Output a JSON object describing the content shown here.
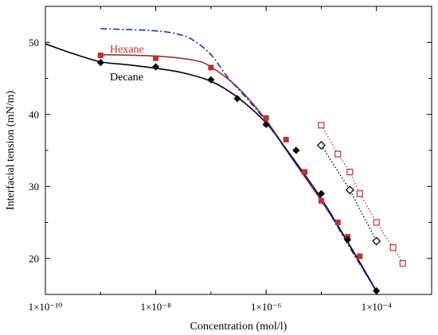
{
  "chart_data": {
    "type": "scatter",
    "title": "",
    "xlabel": "Concentration (mol/l)",
    "ylabel": "Interfacial tension (mN/m)",
    "x_scale": "log",
    "xlim": [
      1e-10,
      0.001
    ],
    "ylim": [
      15,
      55
    ],
    "x_ticks": [
      1e-10,
      1e-08,
      1e-06,
      0.0001
    ],
    "x_tick_labels": [
      "1×10⁻¹⁰",
      "1×10⁻⁸",
      "1×10⁻⁶",
      "1×10⁻⁴"
    ],
    "y_ticks": [
      20,
      30,
      40,
      50
    ],
    "y_tick_labels": [
      "20",
      "30",
      "40",
      "50"
    ],
    "grid": false,
    "annotations": [
      {
        "text": "Hexane",
        "color": "#c0302b"
      },
      {
        "text": "Decane",
        "color": "#000000"
      }
    ],
    "series": [
      {
        "name": "Hexane",
        "kind": "markers",
        "marker": "filled-square",
        "color": "#c0302b",
        "x": [
          1e-09,
          1e-08,
          1e-07,
          1e-06,
          2.3e-06,
          5e-06,
          1e-05,
          2e-05,
          3e-05,
          5e-05
        ],
        "y": [
          48.2,
          47.8,
          46.5,
          39.5,
          36.5,
          32.0,
          28.0,
          25.0,
          23.0,
          20.3
        ]
      },
      {
        "kind": "line",
        "style": "solid",
        "color": "#a0302b",
        "x": [
          1e-09,
          1e-08,
          5e-08,
          1e-07,
          3e-07,
          1e-06,
          3e-06,
          1e-05,
          3e-05,
          0.0001
        ],
        "y": [
          48.3,
          48.1,
          47.5,
          46.6,
          43.8,
          39.2,
          33.8,
          28.0,
          22.3,
          15.5
        ]
      },
      {
        "name": "Decane",
        "kind": "markers",
        "marker": "filled-diamond",
        "color": "#000000",
        "x": [
          1e-09,
          1e-08,
          1e-07,
          3e-07,
          1e-06,
          3.5e-06,
          1e-05,
          3e-05,
          0.0001
        ],
        "y": [
          47.2,
          46.6,
          44.8,
          42.2,
          38.6,
          35.0,
          29.0,
          22.6,
          15.5
        ]
      },
      {
        "kind": "line",
        "style": "solid",
        "color": "#000000",
        "x": [
          1e-10,
          3e-10,
          1e-09,
          3e-09,
          1e-08,
          3e-08,
          1e-07,
          3e-07,
          1e-06,
          3e-06,
          1e-05,
          3e-05,
          0.0001
        ],
        "y": [
          49.8,
          48.5,
          47.3,
          46.9,
          46.4,
          45.8,
          44.6,
          42.4,
          38.8,
          34.0,
          28.3,
          22.3,
          15.4
        ]
      },
      {
        "kind": "line",
        "style": "dash-dot",
        "color": "#2030c8",
        "x": [
          1e-09,
          1e-08,
          3e-08,
          5e-08,
          1e-07,
          2e-07,
          5e-07,
          1e-06,
          3e-06,
          1e-05,
          3e-05,
          0.0001
        ],
        "y": [
          51.9,
          51.6,
          51.0,
          50.2,
          48.3,
          45.2,
          41.8,
          39.0,
          33.8,
          28.2,
          22.0,
          15.4
        ]
      },
      {
        "kind": "markers-line",
        "style": "dotted",
        "marker": "open-square",
        "color": "#c0302b",
        "x": [
          1e-05,
          2e-05,
          3.3e-05,
          5e-05,
          0.0001,
          0.0002,
          0.0003
        ],
        "y": [
          38.5,
          34.5,
          32.0,
          29.0,
          25.0,
          21.5,
          19.3
        ]
      },
      {
        "kind": "markers-line",
        "style": "dotted",
        "marker": "open-diamond",
        "color": "#000000",
        "x": [
          1e-05,
          3.3e-05,
          0.0001
        ],
        "y": [
          35.7,
          29.5,
          22.4
        ]
      }
    ]
  }
}
